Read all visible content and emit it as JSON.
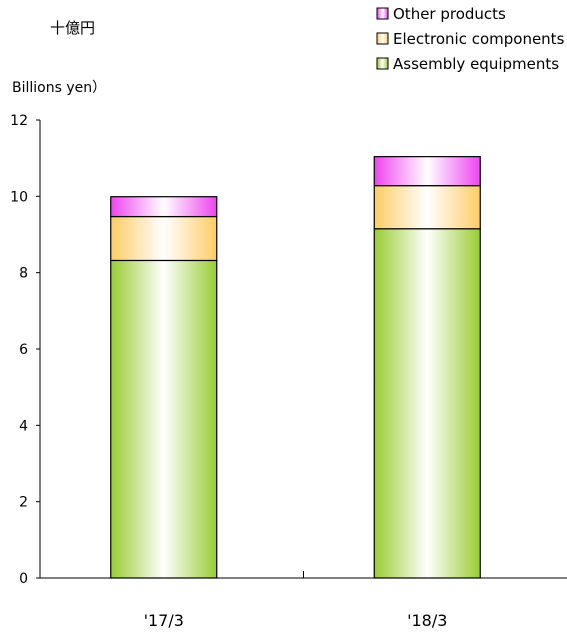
{
  "chart_data": {
    "type": "bar",
    "stacked": true,
    "unit_label_ja": "十億円",
    "unit_label_en": "Billions  yen）",
    "categories": [
      "'17/3",
      "'18/3"
    ],
    "series": [
      {
        "name": "Assembly equipments",
        "color": "#99cc33",
        "values": [
          8.32,
          9.15
        ]
      },
      {
        "name": "Electronic components",
        "color": "#ffcc66",
        "values": [
          1.15,
          1.13
        ]
      },
      {
        "name": "Other products",
        "color": "#ee44ee",
        "values": [
          0.52,
          0.76
        ]
      }
    ],
    "legend_order": [
      "Other products",
      "Electronic components",
      "Assembly equipments"
    ],
    "legend_position": "top-right",
    "ylim": [
      0,
      12
    ],
    "yticks": [
      "0",
      "2",
      "4",
      "6",
      "8",
      "10",
      "12"
    ],
    "grid": false
  }
}
